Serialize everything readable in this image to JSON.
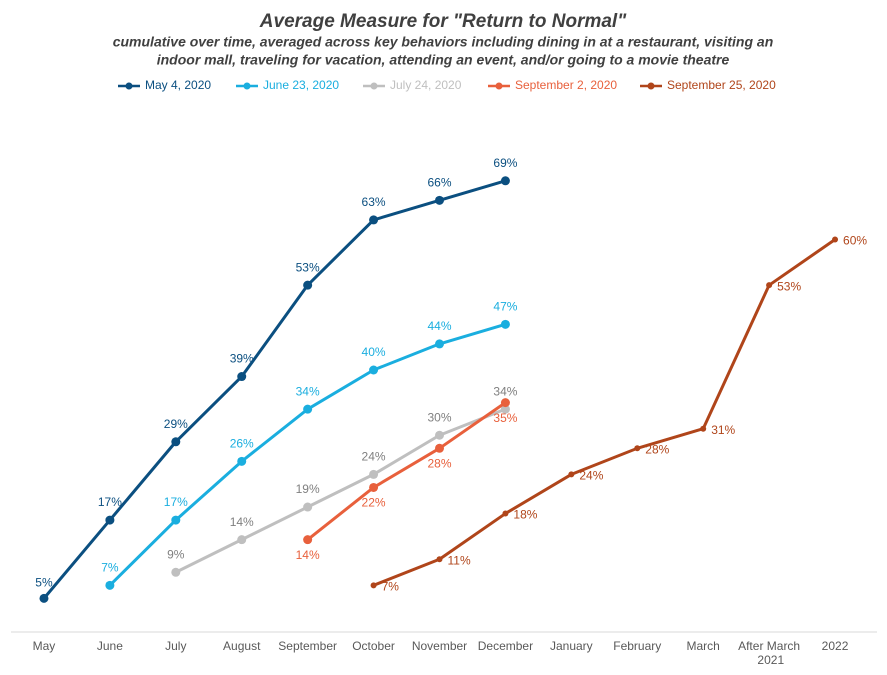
{
  "chart_data": {
    "type": "line",
    "title": "Average Measure for \"Return to Normal\"",
    "subtitle": [
      "cumulative over time, averaged across key behaviors including dining in at a restaurant, visiting an",
      "indoor mall, traveling for vacation, attending an event, and/or going to a movie theatre"
    ],
    "categories": [
      "May",
      "June",
      "July",
      "August",
      "September",
      "October",
      "November",
      "December",
      "January",
      "February",
      "March",
      "After March 2021",
      "2022"
    ],
    "ylim": [
      0,
      80
    ],
    "legend": "top",
    "series": [
      {
        "name": "May 4, 2020",
        "color": "#0b4f80",
        "values": [
          5,
          17,
          29,
          39,
          53,
          63,
          66,
          69,
          null,
          null,
          null,
          null,
          null
        ],
        "value_labels": [
          "5%",
          "17%",
          "29%",
          "39%",
          "53%",
          "63%",
          "66%",
          "69%",
          null,
          null,
          null,
          null,
          null
        ]
      },
      {
        "name": "June 23, 2020",
        "color": "#1aaedf",
        "values": [
          null,
          7,
          17,
          26,
          34,
          40,
          44,
          47,
          null,
          null,
          null,
          null,
          null
        ],
        "value_labels": [
          null,
          "7%",
          "17%",
          "26%",
          "34%",
          "40%",
          "44%",
          "47%",
          null,
          null,
          null,
          null,
          null
        ]
      },
      {
        "name": "July 24, 2020",
        "color": "#bfbfbf",
        "values": [
          null,
          null,
          9,
          14,
          19,
          24,
          30,
          34,
          null,
          null,
          null,
          null,
          null
        ],
        "value_labels": [
          null,
          null,
          "9%",
          "14%",
          "19%",
          "24%",
          "30%",
          "34%",
          null,
          null,
          null,
          null,
          null
        ]
      },
      {
        "name": "September 2, 2020",
        "color": "#e8603c",
        "values": [
          null,
          null,
          null,
          null,
          14,
          22,
          28,
          35,
          null,
          null,
          null,
          null,
          null
        ],
        "value_labels": [
          null,
          null,
          null,
          null,
          "14%",
          "22%",
          "28%",
          "35%",
          null,
          null,
          null,
          null,
          null
        ]
      },
      {
        "name": "September 25, 2020",
        "color": "#b0451a",
        "values": [
          null,
          null,
          null,
          null,
          null,
          7,
          11,
          18,
          24,
          28,
          31,
          53,
          60
        ],
        "value_labels": [
          null,
          null,
          null,
          null,
          null,
          "7%",
          "11%",
          "18%",
          "24%",
          "28%",
          "31%",
          "53%",
          "60%"
        ]
      }
    ]
  }
}
